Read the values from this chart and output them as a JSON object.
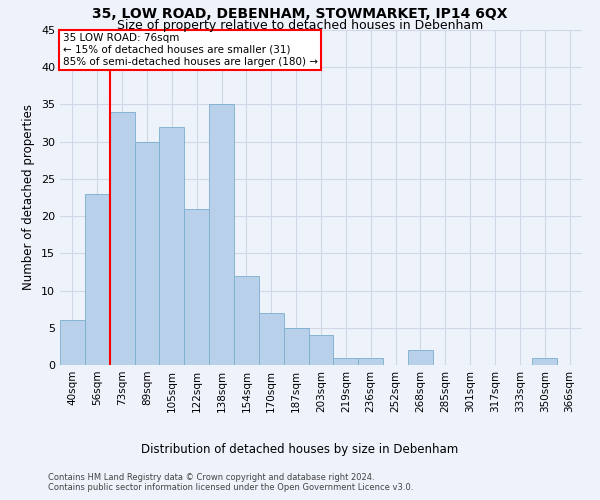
{
  "title1": "35, LOW ROAD, DEBENHAM, STOWMARKET, IP14 6QX",
  "title2": "Size of property relative to detached houses in Debenham",
  "xlabel": "Distribution of detached houses by size in Debenham",
  "ylabel": "Number of detached properties",
  "footer1": "Contains HM Land Registry data © Crown copyright and database right 2024.",
  "footer2": "Contains public sector information licensed under the Open Government Licence v3.0.",
  "categories": [
    "40sqm",
    "56sqm",
    "73sqm",
    "89sqm",
    "105sqm",
    "122sqm",
    "138sqm",
    "154sqm",
    "170sqm",
    "187sqm",
    "203sqm",
    "219sqm",
    "236sqm",
    "252sqm",
    "268sqm",
    "285sqm",
    "301sqm",
    "317sqm",
    "333sqm",
    "350sqm",
    "366sqm"
  ],
  "values": [
    6,
    23,
    34,
    30,
    32,
    21,
    35,
    12,
    7,
    5,
    4,
    1,
    1,
    0,
    2,
    0,
    0,
    0,
    0,
    1,
    0
  ],
  "bar_color": "#b8d0ea",
  "bar_edge_color": "#7aaecc",
  "grid_color": "#d0d8e8",
  "annotation_line_index": 2,
  "annotation_box_text1": "35 LOW ROAD: 76sqm",
  "annotation_box_text2": "← 15% of detached houses are smaller (31)",
  "annotation_box_text3": "85% of semi-detached houses are larger (180) →",
  "annotation_box_color": "white",
  "annotation_box_edge_color": "red",
  "annotation_line_color": "red",
  "ylim": [
    0,
    45
  ],
  "yticks": [
    0,
    5,
    10,
    15,
    20,
    25,
    30,
    35,
    40,
    45
  ],
  "background_color": "#eef2fb",
  "title1_fontsize": 10,
  "title2_fontsize": 9,
  "ylabel_fontsize": 8.5,
  "xlabel_fontsize": 8.5,
  "tick_fontsize": 7.5,
  "ytick_fontsize": 8,
  "footer_fontsize": 6,
  "annot_fontsize": 7.5
}
